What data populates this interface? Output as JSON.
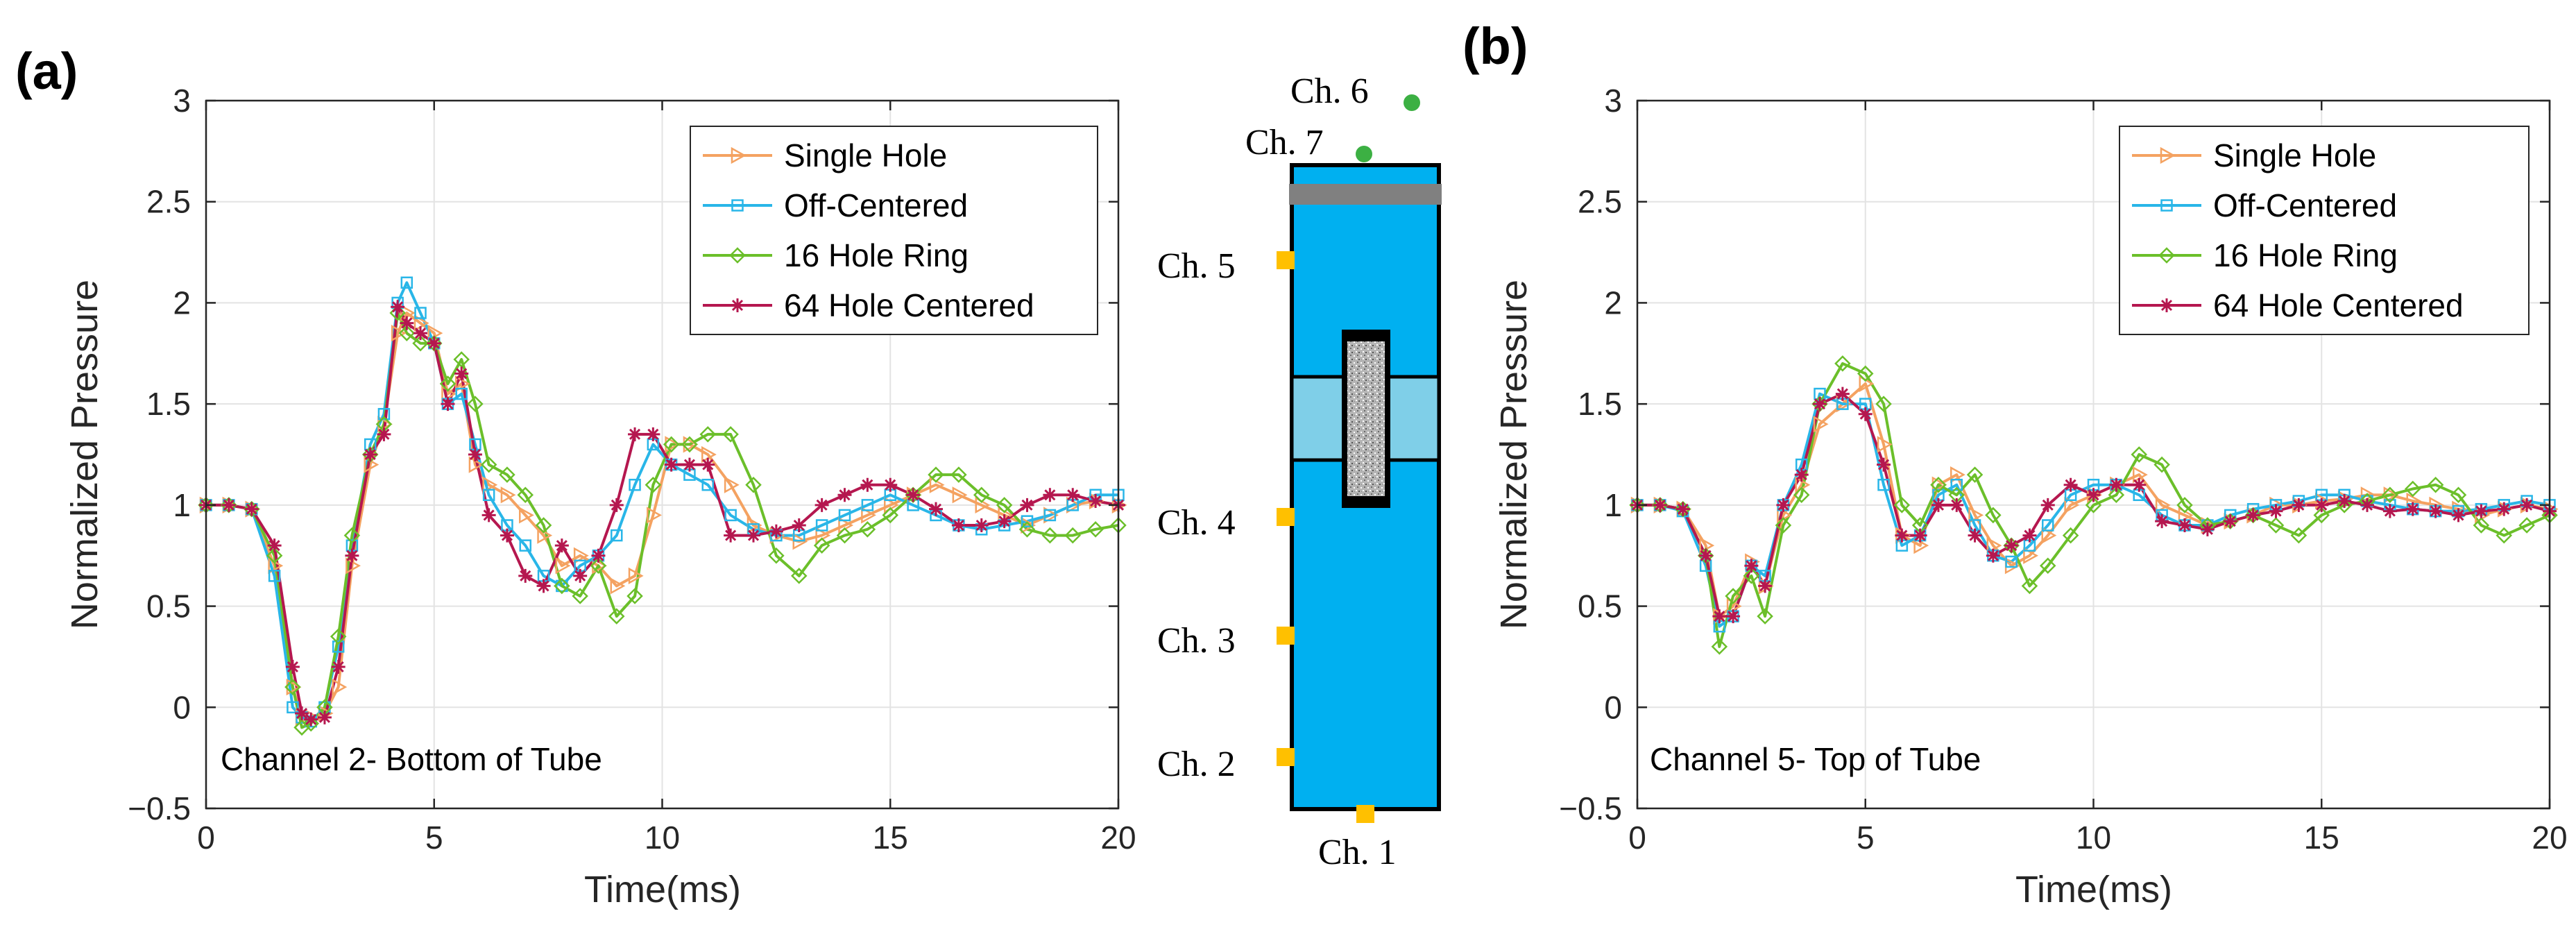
{
  "panel_labels": {
    "a": "(a)",
    "b": "(b)"
  },
  "chart_data": [
    {
      "type": "line",
      "panel": "(a)",
      "annotation": "Channel 2- Bottom of Tube",
      "xlabel": "Time(ms)",
      "ylabel": "Normalized Pressure",
      "xlim": [
        0,
        20
      ],
      "ylim": [
        -0.5,
        3
      ],
      "xticks": [
        0,
        5,
        10,
        15,
        20
      ],
      "yticks": [
        -0.5,
        0,
        0.5,
        1,
        1.5,
        2,
        2.5,
        3
      ],
      "ytick_labels": [
        "−0.5",
        "0",
        "0.5",
        "1",
        "1.5",
        "2",
        "2.5",
        "3"
      ],
      "grid": true,
      "legend_position": "top-right",
      "series": [
        {
          "name": "Single Hole",
          "color": "#F4A261",
          "marker": "triangle-right",
          "x": [
            0,
            0.5,
            1.0,
            1.5,
            1.9,
            2.1,
            2.3,
            2.6,
            2.9,
            3.2,
            3.6,
            3.9,
            4.2,
            4.4,
            4.7,
            5.0,
            5.3,
            5.6,
            5.9,
            6.2,
            6.6,
            7.0,
            7.4,
            7.8,
            8.2,
            8.6,
            9.0,
            9.4,
            9.8,
            10.2,
            10.6,
            11.0,
            11.5,
            12.0,
            12.5,
            13.0,
            13.5,
            14.0,
            14.5,
            15.0,
            15.5,
            16.0,
            16.5,
            17.0,
            17.5,
            18.0,
            18.5,
            19.0,
            19.5,
            20.0
          ],
          "y": [
            1,
            1,
            0.98,
            0.7,
            0.1,
            -0.05,
            -0.05,
            -0.03,
            0.1,
            0.7,
            1.2,
            1.4,
            1.85,
            1.95,
            1.9,
            1.85,
            1.55,
            1.6,
            1.2,
            1.1,
            1.05,
            0.95,
            0.85,
            0.7,
            0.75,
            0.7,
            0.6,
            0.65,
            0.95,
            1.3,
            1.3,
            1.25,
            1.1,
            0.9,
            0.85,
            0.82,
            0.85,
            0.9,
            0.95,
            1.0,
            1.05,
            1.1,
            1.05,
            1.0,
            0.95,
            0.9,
            0.95,
            1.0,
            1.02,
            1.0
          ]
        },
        {
          "name": "Off-Centered",
          "color": "#29B6E8",
          "marker": "square",
          "x": [
            0,
            0.5,
            1.0,
            1.5,
            1.9,
            2.1,
            2.3,
            2.6,
            2.9,
            3.2,
            3.6,
            3.9,
            4.2,
            4.4,
            4.7,
            5.0,
            5.3,
            5.6,
            5.9,
            6.2,
            6.6,
            7.0,
            7.4,
            7.8,
            8.2,
            8.6,
            9.0,
            9.4,
            9.8,
            10.2,
            10.6,
            11.0,
            11.5,
            12.0,
            12.5,
            13.0,
            13.5,
            14.0,
            14.5,
            15.0,
            15.5,
            16.0,
            16.5,
            17.0,
            17.5,
            18.0,
            18.5,
            19.0,
            19.5,
            20.0
          ],
          "y": [
            1,
            1,
            0.98,
            0.65,
            0.0,
            -0.05,
            -0.07,
            0.0,
            0.3,
            0.8,
            1.3,
            1.45,
            2.0,
            2.1,
            1.95,
            1.8,
            1.5,
            1.55,
            1.3,
            1.05,
            0.9,
            0.8,
            0.65,
            0.6,
            0.7,
            0.75,
            0.85,
            1.1,
            1.3,
            1.2,
            1.15,
            1.1,
            0.95,
            0.88,
            0.85,
            0.85,
            0.9,
            0.95,
            1.0,
            1.05,
            1.0,
            0.95,
            0.9,
            0.88,
            0.9,
            0.92,
            0.95,
            1.0,
            1.05,
            1.05
          ]
        },
        {
          "name": "16 Hole Ring",
          "color": "#6BBF2A",
          "marker": "diamond",
          "x": [
            0,
            0.5,
            1.0,
            1.5,
            1.9,
            2.1,
            2.3,
            2.6,
            2.9,
            3.2,
            3.6,
            3.9,
            4.2,
            4.4,
            4.7,
            5.0,
            5.3,
            5.6,
            5.9,
            6.2,
            6.6,
            7.0,
            7.4,
            7.8,
            8.2,
            8.6,
            9.0,
            9.4,
            9.8,
            10.2,
            10.6,
            11.0,
            11.5,
            12.0,
            12.5,
            13.0,
            13.5,
            14.0,
            14.5,
            15.0,
            15.5,
            16.0,
            16.5,
            17.0,
            17.5,
            18.0,
            18.5,
            19.0,
            19.5,
            20.0
          ],
          "y": [
            1,
            1,
            0.98,
            0.75,
            0.1,
            -0.1,
            -0.08,
            0.0,
            0.35,
            0.85,
            1.25,
            1.4,
            1.95,
            1.85,
            1.8,
            1.8,
            1.6,
            1.72,
            1.5,
            1.2,
            1.15,
            1.05,
            0.9,
            0.6,
            0.55,
            0.7,
            0.45,
            0.55,
            1.1,
            1.3,
            1.3,
            1.35,
            1.35,
            1.1,
            0.75,
            0.65,
            0.8,
            0.85,
            0.88,
            0.95,
            1.05,
            1.15,
            1.15,
            1.05,
            1.0,
            0.88,
            0.85,
            0.85,
            0.88,
            0.9
          ]
        },
        {
          "name": "64 Hole Centered",
          "color": "#B5174F",
          "marker": "star",
          "x": [
            0,
            0.5,
            1.0,
            1.5,
            1.9,
            2.1,
            2.3,
            2.6,
            2.9,
            3.2,
            3.6,
            3.9,
            4.2,
            4.4,
            4.7,
            5.0,
            5.3,
            5.6,
            5.9,
            6.2,
            6.6,
            7.0,
            7.4,
            7.8,
            8.2,
            8.6,
            9.0,
            9.4,
            9.8,
            10.2,
            10.6,
            11.0,
            11.5,
            12.0,
            12.5,
            13.0,
            13.5,
            14.0,
            14.5,
            15.0,
            15.5,
            16.0,
            16.5,
            17.0,
            17.5,
            18.0,
            18.5,
            19.0,
            19.5,
            20.0
          ],
          "y": [
            1,
            1,
            0.98,
            0.8,
            0.2,
            -0.03,
            -0.06,
            -0.05,
            0.2,
            0.75,
            1.25,
            1.35,
            1.98,
            1.9,
            1.85,
            1.8,
            1.5,
            1.65,
            1.25,
            0.95,
            0.85,
            0.65,
            0.6,
            0.8,
            0.65,
            0.75,
            1.0,
            1.35,
            1.35,
            1.2,
            1.2,
            1.2,
            0.85,
            0.85,
            0.87,
            0.9,
            1.0,
            1.05,
            1.1,
            1.1,
            1.05,
            0.98,
            0.9,
            0.9,
            0.92,
            1.0,
            1.05,
            1.05,
            1.02,
            1.0
          ]
        }
      ]
    },
    {
      "type": "line",
      "panel": "(b)",
      "annotation": "Channel 5- Top of Tube",
      "xlabel": "Time(ms)",
      "ylabel": "Normalized Pressure",
      "xlim": [
        0,
        20
      ],
      "ylim": [
        -0.5,
        3
      ],
      "xticks": [
        0,
        5,
        10,
        15,
        20
      ],
      "yticks": [
        -0.5,
        0,
        0.5,
        1,
        1.5,
        2,
        2.5,
        3
      ],
      "ytick_labels": [
        "−0.5",
        "0",
        "0.5",
        "1",
        "1.5",
        "2",
        "2.5",
        "3"
      ],
      "grid": true,
      "legend_position": "top-right",
      "series": [
        {
          "name": "Single Hole",
          "color": "#F4A261",
          "marker": "triangle-right",
          "x": [
            0,
            0.5,
            1.0,
            1.5,
            1.8,
            2.1,
            2.5,
            2.8,
            3.2,
            3.6,
            4.0,
            4.5,
            5.0,
            5.4,
            5.8,
            6.2,
            6.6,
            7.0,
            7.4,
            7.8,
            8.2,
            8.6,
            9.0,
            9.5,
            10.0,
            10.5,
            11.0,
            11.5,
            12.0,
            12.5,
            13.0,
            13.5,
            14.0,
            14.5,
            15.0,
            15.5,
            16.0,
            16.5,
            17.0,
            17.5,
            18.0,
            18.5,
            19.0,
            19.5,
            20.0
          ],
          "y": [
            1,
            1,
            0.98,
            0.8,
            0.45,
            0.5,
            0.72,
            0.6,
            0.95,
            1.1,
            1.4,
            1.5,
            1.6,
            1.3,
            0.85,
            0.8,
            1.1,
            1.15,
            0.95,
            0.8,
            0.7,
            0.75,
            0.85,
            1.0,
            1.05,
            1.1,
            1.15,
            1.0,
            0.95,
            0.9,
            0.92,
            0.95,
            1.0,
            1.0,
            1.02,
            1.03,
            1.05,
            1.05,
            1.02,
            1.0,
            0.98,
            0.95,
            0.98,
            1.0,
            0.98
          ]
        },
        {
          "name": "Off-Centered",
          "color": "#29B6E8",
          "marker": "square",
          "x": [
            0,
            0.5,
            1.0,
            1.5,
            1.8,
            2.1,
            2.5,
            2.8,
            3.2,
            3.6,
            4.0,
            4.5,
            5.0,
            5.4,
            5.8,
            6.2,
            6.6,
            7.0,
            7.4,
            7.8,
            8.2,
            8.6,
            9.0,
            9.5,
            10.0,
            10.5,
            11.0,
            11.5,
            12.0,
            12.5,
            13.0,
            13.5,
            14.0,
            14.5,
            15.0,
            15.5,
            16.0,
            16.5,
            17.0,
            17.5,
            18.0,
            18.5,
            19.0,
            19.5,
            20.0
          ],
          "y": [
            1,
            1,
            0.97,
            0.7,
            0.4,
            0.45,
            0.7,
            0.65,
            1.0,
            1.2,
            1.55,
            1.5,
            1.5,
            1.1,
            0.8,
            0.85,
            1.05,
            1.1,
            0.9,
            0.75,
            0.72,
            0.8,
            0.9,
            1.05,
            1.1,
            1.1,
            1.05,
            0.95,
            0.9,
            0.9,
            0.95,
            0.98,
            1.0,
            1.02,
            1.05,
            1.05,
            1.02,
            1.0,
            0.98,
            0.97,
            0.97,
            0.98,
            1.0,
            1.02,
            1.0
          ]
        },
        {
          "name": "16 Hole Ring",
          "color": "#6BBF2A",
          "marker": "diamond",
          "x": [
            0,
            0.5,
            1.0,
            1.5,
            1.8,
            2.1,
            2.5,
            2.8,
            3.2,
            3.6,
            4.0,
            4.5,
            5.0,
            5.4,
            5.8,
            6.2,
            6.6,
            7.0,
            7.4,
            7.8,
            8.2,
            8.6,
            9.0,
            9.5,
            10.0,
            10.5,
            11.0,
            11.5,
            12.0,
            12.5,
            13.0,
            13.5,
            14.0,
            14.5,
            15.0,
            15.5,
            16.0,
            16.5,
            17.0,
            17.5,
            18.0,
            18.5,
            19.0,
            19.5,
            20.0
          ],
          "y": [
            1,
            1,
            0.98,
            0.75,
            0.3,
            0.55,
            0.65,
            0.45,
            0.9,
            1.05,
            1.5,
            1.7,
            1.65,
            1.5,
            1.0,
            0.9,
            1.1,
            1.05,
            1.15,
            0.95,
            0.8,
            0.6,
            0.7,
            0.85,
            1.0,
            1.05,
            1.25,
            1.2,
            1.0,
            0.9,
            0.92,
            0.95,
            0.9,
            0.85,
            0.95,
            1.0,
            1.02,
            1.05,
            1.08,
            1.1,
            1.05,
            0.9,
            0.85,
            0.9,
            0.95
          ]
        },
        {
          "name": "64 Hole Centered",
          "color": "#B5174F",
          "marker": "star",
          "x": [
            0,
            0.5,
            1.0,
            1.5,
            1.8,
            2.1,
            2.5,
            2.8,
            3.2,
            3.6,
            4.0,
            4.5,
            5.0,
            5.4,
            5.8,
            6.2,
            6.6,
            7.0,
            7.4,
            7.8,
            8.2,
            8.6,
            9.0,
            9.5,
            10.0,
            10.5,
            11.0,
            11.5,
            12.0,
            12.5,
            13.0,
            13.5,
            14.0,
            14.5,
            15.0,
            15.5,
            16.0,
            16.5,
            17.0,
            17.5,
            18.0,
            18.5,
            19.0,
            19.5,
            20.0
          ],
          "y": [
            1,
            1,
            0.98,
            0.75,
            0.45,
            0.45,
            0.7,
            0.6,
            1.0,
            1.15,
            1.5,
            1.55,
            1.45,
            1.2,
            0.85,
            0.85,
            1.0,
            1.0,
            0.85,
            0.75,
            0.8,
            0.85,
            1.0,
            1.1,
            1.05,
            1.1,
            1.1,
            0.92,
            0.9,
            0.88,
            0.92,
            0.95,
            0.97,
            1.0,
            1.0,
            1.02,
            1.0,
            0.97,
            0.98,
            0.97,
            0.95,
            0.97,
            0.98,
            1.0,
            0.97
          ]
        }
      ]
    }
  ],
  "tube_diagram": {
    "channel_labels": [
      "Ch. 6",
      "Ch. 7",
      "Ch. 5",
      "Ch. 4",
      "Ch. 3",
      "Ch. 2",
      "Ch. 1"
    ],
    "colors": {
      "tube": "#00B0F0",
      "band": "#7FCFE8",
      "cap": "#808080",
      "sensor_square": "#FFC000",
      "sensor_dot": "#3CB043"
    }
  }
}
